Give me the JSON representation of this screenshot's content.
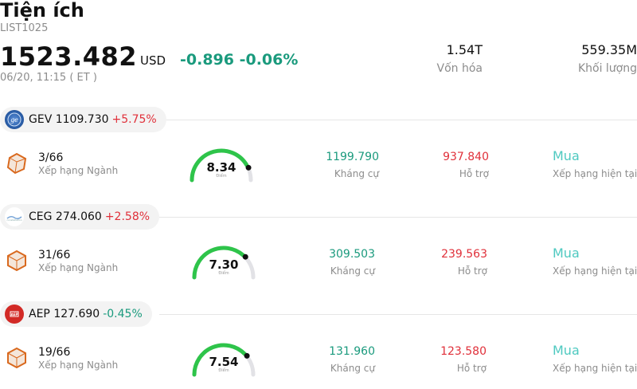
{
  "header": {
    "title": "Tiện ích",
    "code": "LIST1025",
    "price": "1523.482",
    "currency": "USD",
    "change": "-0.896 -0.06%",
    "time": "06/20, 11:15  ( ET )",
    "market_cap_value": "1.54T",
    "market_cap_label": "Vốn hóa",
    "volume_value": "559.35M",
    "volume_label": "Khối lượng"
  },
  "colors": {
    "up": "#e0303a",
    "down": "#1a9a7d",
    "rating": "#4ec9c0",
    "gauge_fill": "#2ec44a",
    "gauge_track": "#e2e2e6"
  },
  "stocks": [
    {
      "ticker": "GEV 1109.730",
      "change": "+5.75%",
      "logo": "ge-logo-icon",
      "rank": "3/66",
      "rank_label": "Xếp hạng Ngành",
      "score": "8.34",
      "score_value": 8.34,
      "score_label": "Điểm",
      "resistance": "1199.790",
      "resistance_label": "Kháng cự",
      "support": "937.840",
      "support_label": "Hỗ trợ",
      "rating": "Mua",
      "rating_label": "Xếp hạng hiện tại"
    },
    {
      "ticker": "CEG 274.060",
      "change": "+2.58%",
      "logo": "constellation-logo-icon",
      "rank": "31/66",
      "rank_label": "Xếp hạng Ngành",
      "score": "7.30",
      "score_value": 7.3,
      "score_label": "Điểm",
      "resistance": "309.503",
      "resistance_label": "Kháng cự",
      "support": "239.563",
      "support_label": "Hỗ trợ",
      "rating": "Mua",
      "rating_label": "Xếp hạng hiện tại"
    },
    {
      "ticker": "AEP 127.690",
      "change": "-0.45%",
      "logo": "aep-logo-icon",
      "rank": "19/66",
      "rank_label": "Xếp hạng Ngành",
      "score": "7.54",
      "score_value": 7.54,
      "score_label": "Điểm",
      "resistance": "131.960",
      "resistance_label": "Kháng cự",
      "support": "123.580",
      "support_label": "Hỗ trợ",
      "rating": "Mua",
      "rating_label": "Xếp hạng hiện tại"
    }
  ]
}
